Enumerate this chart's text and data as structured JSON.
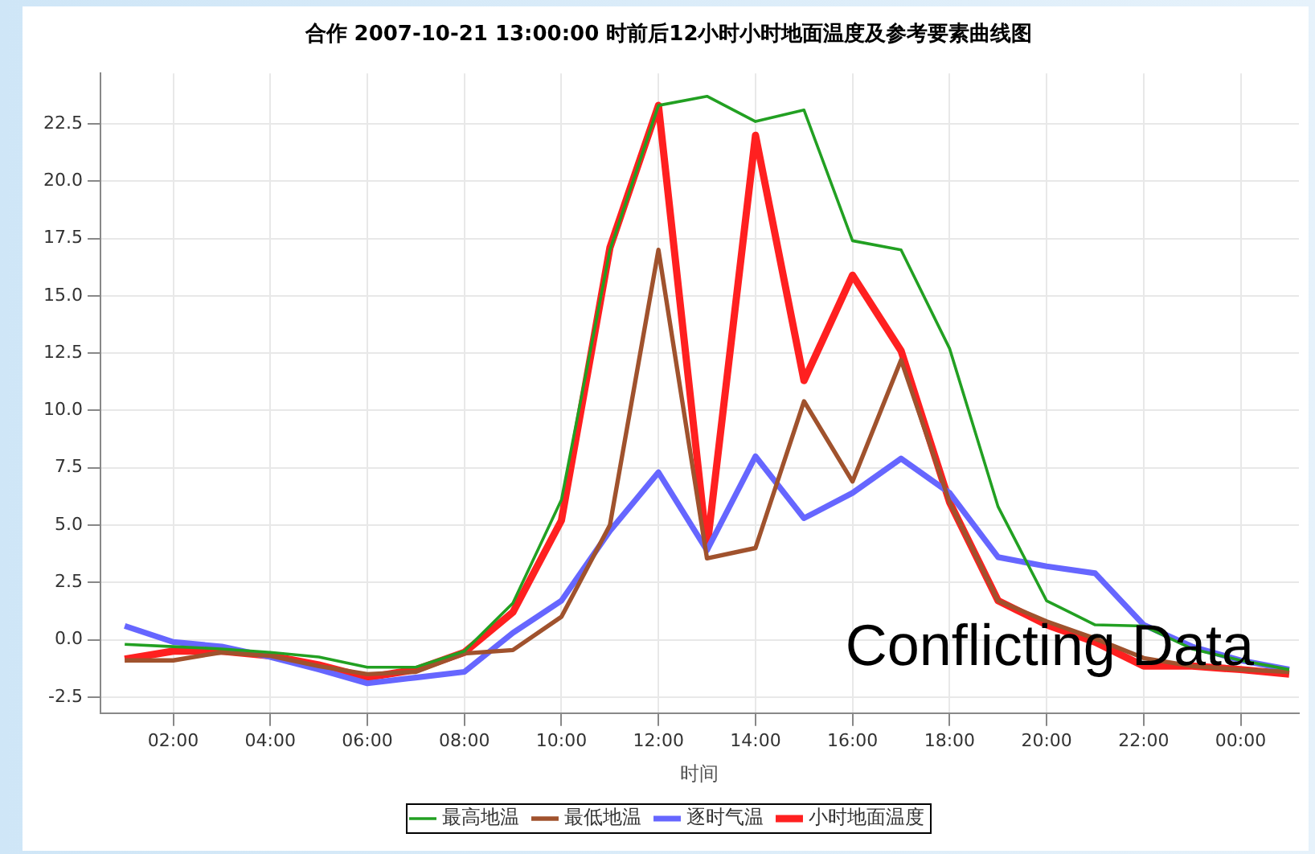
{
  "chart_data": {
    "type": "line",
    "title": "合作 2007-10-21 13:00:00 时前后12小时小时地面温度及参考要素曲线图",
    "xlabel": "时间",
    "x": [
      1,
      2,
      3,
      4,
      5,
      6,
      7,
      8,
      9,
      10,
      11,
      12,
      13,
      14,
      15,
      16,
      17,
      18,
      19,
      20,
      21,
      22,
      23,
      24,
      25
    ],
    "series": [
      {
        "name": "最高地温",
        "color": "#22a022",
        "values": [
          -0.2,
          -0.3,
          -0.4,
          -0.55,
          -0.75,
          -1.2,
          -1.2,
          -0.5,
          1.6,
          6.1,
          17.0,
          23.3,
          23.7,
          22.6,
          23.1,
          17.4,
          17.0,
          12.7,
          5.8,
          1.7,
          0.65,
          0.6,
          -0.4,
          -0.9,
          -1.3
        ]
      },
      {
        "name": "最低地温",
        "color": "#a0522d",
        "values": [
          -0.9,
          -0.9,
          -0.55,
          -0.7,
          -1.15,
          -1.5,
          -1.4,
          -0.6,
          -0.45,
          1.0,
          5.0,
          17.0,
          3.55,
          4.0,
          10.4,
          6.9,
          12.2,
          6.0,
          1.7,
          0.8,
          0.05,
          -0.8,
          -1.15,
          -1.3,
          -1.4
        ]
      },
      {
        "name": "逐时气温",
        "color": "#6666ff",
        "values": [
          0.6,
          -0.1,
          -0.3,
          -0.75,
          -1.3,
          -1.9,
          -1.65,
          -1.4,
          0.3,
          1.7,
          4.75,
          7.3,
          3.9,
          8.0,
          5.3,
          6.4,
          7.9,
          6.4,
          3.6,
          3.2,
          2.9,
          0.65,
          -0.3,
          -0.9,
          -1.3
        ]
      },
      {
        "name": "小时地面温度",
        "color": "#ff2020",
        "values": [
          -0.85,
          -0.5,
          -0.5,
          -0.7,
          -1.1,
          -1.65,
          -1.3,
          -0.55,
          1.2,
          5.2,
          17.1,
          23.3,
          4.0,
          22.0,
          11.3,
          15.9,
          12.6,
          6.0,
          1.7,
          0.65,
          -0.1,
          -1.15,
          -1.15,
          -1.3,
          -1.5
        ]
      }
    ],
    "xlim": [
      0.5,
      25.2
    ],
    "xticks": [
      {
        "value": 2,
        "label": "02:00"
      },
      {
        "value": 4,
        "label": "04:00"
      },
      {
        "value": 6,
        "label": "06:00"
      },
      {
        "value": 8,
        "label": "08:00"
      },
      {
        "value": 10,
        "label": "10:00"
      },
      {
        "value": 12,
        "label": "12:00"
      },
      {
        "value": 14,
        "label": "14:00"
      },
      {
        "value": 16,
        "label": "16:00"
      },
      {
        "value": 18,
        "label": "18:00"
      },
      {
        "value": 20,
        "label": "20:00"
      },
      {
        "value": 22,
        "label": "22:00"
      },
      {
        "value": 24,
        "label": "00:00"
      }
    ],
    "ylim": [
      -3.2,
      24.7
    ],
    "yticks": [
      -2.5,
      {
        "value": 0,
        "label": "0.0"
      },
      2.5,
      {
        "value": 5,
        "label": "5.0"
      },
      7.5,
      {
        "value": 10,
        "label": "10.0"
      },
      12.5,
      {
        "value": 15,
        "label": "15.0"
      },
      17.5,
      {
        "value": 20,
        "label": "20.0"
      },
      22.5
    ],
    "grid": true,
    "legend": "bottom",
    "marker": "none",
    "line_style": "solid",
    "annotations": [
      "Conflicting Data"
    ]
  }
}
